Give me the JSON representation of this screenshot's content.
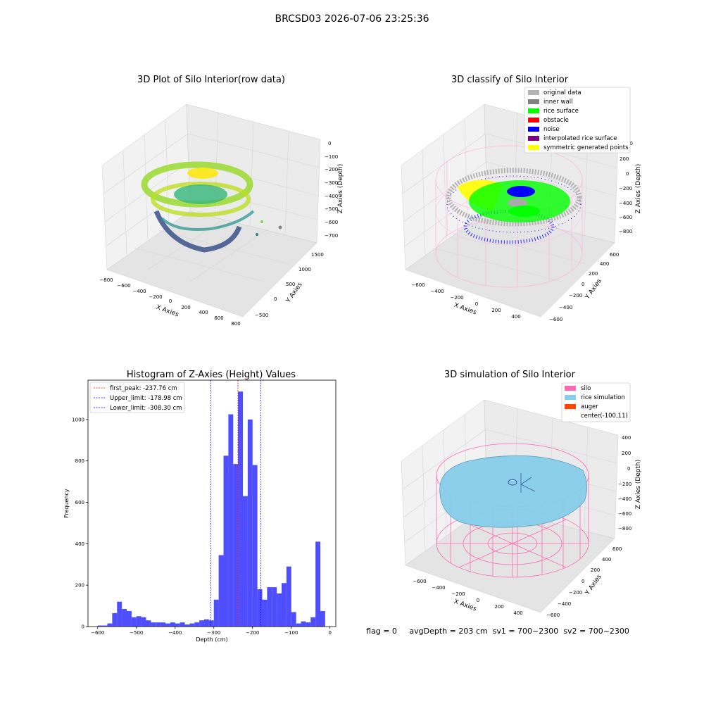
{
  "figure": {
    "suptitle": "BRCSD03 2026-07-06 23:25:36",
    "status_line": "flag = 0     avgDepth = 203 cm  sv1 = 700~2300  sv2 = 700~2300"
  },
  "colors": {
    "hist_bar": "#4444ff",
    "first_peak": "#ff0000",
    "limits": "#0000ff",
    "pane": "#f2f2f2",
    "grid": "#d8d8d8",
    "silo": "#ff69b4",
    "rice_simulation": "#87ceeb",
    "auger": "#ff4500",
    "original": "#b3b3b3",
    "inner_wall": "#808080",
    "rice_surface": "#00ff00",
    "obstacle": "#ff0000",
    "noise": "#0000ff",
    "interp": "#800080",
    "symmetric": "#ffff00"
  },
  "panels": {
    "raw": {
      "title": "3D Plot of Silo Interior(row data)",
      "xlabel": "X Axies",
      "ylabel": "Y Axies",
      "zlabel": "Z Axies (Depth)",
      "xticks": [
        "−800",
        "−600",
        "−400",
        "−200",
        "0",
        "200",
        "400",
        "600",
        "800"
      ],
      "yticks": [
        "−500",
        "0",
        "500",
        "1000",
        "1500"
      ],
      "zticks": [
        "0",
        "−100",
        "−200",
        "−300",
        "−400",
        "−500",
        "−600",
        "−700"
      ]
    },
    "classify": {
      "title": "3D classify of Silo Interior",
      "xlabel": "X Axies",
      "ylabel": "Y Axies",
      "zlabel": "Z Axies (Depth)",
      "xticks": [
        "−600",
        "−400",
        "−200",
        "0",
        "200",
        "400"
      ],
      "yticks": [
        "−600",
        "−400",
        "−200",
        "0",
        "200",
        "400",
        "600"
      ],
      "zticks": [
        "200",
        "0",
        "−200",
        "−400",
        "−600",
        "−800"
      ],
      "zticks_extra": "00",
      "legend": [
        "original data",
        "inner wall",
        "rice surface",
        "obstacle",
        "noise",
        "interpolated rice surface",
        "symmetric generated points"
      ]
    },
    "simulation": {
      "title": "3D simulation of Silo Interior",
      "xlabel": "X Axies",
      "ylabel": "Y Axies",
      "zlabel": "Z Axies (Depth)",
      "xticks": [
        "−600",
        "−400",
        "−200",
        "0",
        "200",
        "400"
      ],
      "yticks": [
        "−600",
        "−400",
        "−200",
        "0",
        "200",
        "400",
        "600"
      ],
      "zticks": [
        "400",
        "200",
        "0",
        "−200",
        "−400",
        "−600",
        "−800"
      ],
      "legend": [
        "silo",
        "rice simulation",
        "auger",
        "center(-100,11)"
      ]
    }
  },
  "chart_data": [
    {
      "type": "bar",
      "title": "Histogram of Z-Axies (Height) Values",
      "xlabel": "Depth (cm)",
      "ylabel": "Frequency",
      "xlim": [
        -625,
        15
      ],
      "ylim": [
        0,
        1190
      ],
      "bin_width": 12.5,
      "xticks": [
        -600,
        -500,
        -400,
        -300,
        -200,
        -100,
        0
      ],
      "xtick_labels": [
        "−600",
        "−500",
        "−400",
        "−300",
        "−200",
        "−100",
        "0"
      ],
      "yticks": [
        0,
        200,
        400,
        600,
        800,
        1000
      ],
      "bin_starts": [
        -600,
        -587.5,
        -575,
        -562.5,
        -550,
        -537.5,
        -525,
        -512.5,
        -500,
        -487.5,
        -475,
        -462.5,
        -450,
        -437.5,
        -425,
        -412.5,
        -400,
        -387.5,
        -375,
        -362.5,
        -350,
        -337.5,
        -325,
        -312.5,
        -300,
        -287.5,
        -275,
        -262.5,
        -250,
        -237.5,
        -225,
        -212.5,
        -200,
        -187.5,
        -175,
        -162.5,
        -150,
        -137.5,
        -125,
        -112.5,
        -100,
        -87.5,
        -75,
        -62.5,
        -50,
        -37.5,
        -25
      ],
      "values": [
        5,
        5,
        15,
        65,
        120,
        85,
        75,
        45,
        50,
        45,
        30,
        20,
        20,
        20,
        15,
        20,
        15,
        20,
        10,
        15,
        20,
        30,
        35,
        30,
        130,
        345,
        825,
        1025,
        785,
        1135,
        630,
        1000,
        780,
        180,
        130,
        190,
        190,
        160,
        210,
        290,
        70,
        15,
        25,
        20,
        45,
        410,
        75
      ],
      "lines": [
        {
          "name": "first_peak: -237.76 cm",
          "x": -237.76,
          "color": "#ff0000"
        },
        {
          "name": "Upper_limit: -178.98 cm",
          "x": -178.98,
          "color": "#0000ff"
        },
        {
          "name": "Lower_limit: -308.30 cm",
          "x": -308.3,
          "color": "#0000ff"
        }
      ]
    }
  ]
}
